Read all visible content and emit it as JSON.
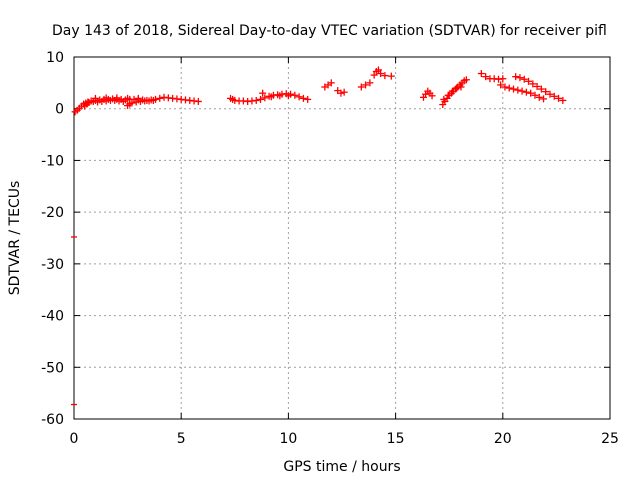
{
  "chart_data": {
    "type": "scatter",
    "title": "Day 143 of 2018, Sidereal Day-to-day VTEC variation (SDTVAR) for receiver pifl",
    "xlabel": "GPS time / hours",
    "ylabel": "SDTVAR / TECUs",
    "xlim": [
      0,
      25
    ],
    "ylim": [
      -60,
      10
    ],
    "xticks": [
      0,
      5,
      10,
      15,
      20,
      25
    ],
    "yticks": [
      10,
      0,
      -10,
      -20,
      -30,
      -40,
      -50,
      -60
    ],
    "grid": true,
    "marker_color": "#ff0000",
    "series": [
      {
        "points": [
          [
            0.05,
            -0.6
          ],
          [
            0.15,
            -0.3
          ],
          [
            0.25,
            0.1
          ],
          [
            0.35,
            0.5
          ],
          [
            0.45,
            0.9
          ],
          [
            0.55,
            1.1
          ],
          [
            0.65,
            1.3
          ],
          [
            0.8,
            1.5
          ],
          [
            1.0,
            1.6
          ],
          [
            1.2,
            1.7
          ],
          [
            1.4,
            1.8
          ],
          [
            1.6,
            1.8
          ],
          [
            1.8,
            1.9
          ],
          [
            2.0,
            1.8
          ],
          [
            2.2,
            1.8
          ],
          [
            2.4,
            1.7
          ],
          [
            2.6,
            1.8
          ],
          [
            2.8,
            1.8
          ],
          [
            3.0,
            1.7
          ],
          [
            3.2,
            1.7
          ],
          [
            3.4,
            1.6
          ],
          [
            3.6,
            1.7
          ],
          [
            3.8,
            1.8
          ],
          [
            4.0,
            2.0
          ],
          [
            4.2,
            2.2
          ],
          [
            4.4,
            2.1
          ],
          [
            4.6,
            2.0
          ],
          [
            4.8,
            1.9
          ],
          [
            5.0,
            1.8
          ],
          [
            5.2,
            1.7
          ],
          [
            5.4,
            1.6
          ],
          [
            5.6,
            1.5
          ],
          [
            5.8,
            1.4
          ],
          [
            0.5,
            0.5
          ],
          [
            0.6,
            0.9
          ],
          [
            0.7,
            1.2
          ],
          [
            0.9,
            1.4
          ],
          [
            1.1,
            1.3
          ],
          [
            1.3,
            1.4
          ],
          [
            1.5,
            1.5
          ],
          [
            1.7,
            1.6
          ],
          [
            1.9,
            1.6
          ],
          [
            2.1,
            1.5
          ],
          [
            2.3,
            1.4
          ],
          [
            2.5,
            0.6
          ],
          [
            2.6,
            0.9
          ],
          [
            2.7,
            1.1
          ],
          [
            2.9,
            1.3
          ],
          [
            3.1,
            1.4
          ],
          [
            3.3,
            1.5
          ],
          [
            3.5,
            1.5
          ],
          [
            3.7,
            1.6
          ],
          [
            1.0,
            2.0
          ],
          [
            1.5,
            2.1
          ],
          [
            2.0,
            2.1
          ],
          [
            2.5,
            2.0
          ],
          [
            3.0,
            2.0
          ],
          [
            7.3,
            2.0
          ],
          [
            7.5,
            1.6
          ],
          [
            7.7,
            1.5
          ],
          [
            7.9,
            1.5
          ],
          [
            8.1,
            1.4
          ],
          [
            8.3,
            1.5
          ],
          [
            8.5,
            1.6
          ],
          [
            8.7,
            1.8
          ],
          [
            8.9,
            2.1
          ],
          [
            9.1,
            2.4
          ],
          [
            9.3,
            2.6
          ],
          [
            9.5,
            2.7
          ],
          [
            9.7,
            2.8
          ],
          [
            9.9,
            2.9
          ],
          [
            10.1,
            2.8
          ],
          [
            10.3,
            2.6
          ],
          [
            10.5,
            2.3
          ],
          [
            10.7,
            2.0
          ],
          [
            10.9,
            1.8
          ],
          [
            8.8,
            3.0
          ],
          [
            7.4,
            1.8
          ],
          [
            9.2,
            2.3
          ],
          [
            9.6,
            2.5
          ],
          [
            10.0,
            2.5
          ],
          [
            11.7,
            4.2
          ],
          [
            11.85,
            4.6
          ],
          [
            12.0,
            5.0
          ],
          [
            12.3,
            3.5
          ],
          [
            12.45,
            3.0
          ],
          [
            12.6,
            3.2
          ],
          [
            13.4,
            4.2
          ],
          [
            13.6,
            4.6
          ],
          [
            13.8,
            5.0
          ],
          [
            14.0,
            6.5
          ],
          [
            14.1,
            7.2
          ],
          [
            14.2,
            7.5
          ],
          [
            14.3,
            6.8
          ],
          [
            14.5,
            6.4
          ],
          [
            14.8,
            6.3
          ],
          [
            16.3,
            2.2
          ],
          [
            16.4,
            2.8
          ],
          [
            16.5,
            3.4
          ],
          [
            16.6,
            3.0
          ],
          [
            16.7,
            2.5
          ],
          [
            17.2,
            0.8
          ],
          [
            17.3,
            1.4
          ],
          [
            17.4,
            2.0
          ],
          [
            17.5,
            2.6
          ],
          [
            17.6,
            3.0
          ],
          [
            17.7,
            3.4
          ],
          [
            17.8,
            3.8
          ],
          [
            17.9,
            4.2
          ],
          [
            18.0,
            4.6
          ],
          [
            18.1,
            5.0
          ],
          [
            18.2,
            5.4
          ],
          [
            18.3,
            5.6
          ],
          [
            17.25,
            1.8
          ],
          [
            17.45,
            2.6
          ],
          [
            17.65,
            3.4
          ],
          [
            17.85,
            4.0
          ],
          [
            18.05,
            4.2
          ],
          [
            19.0,
            6.8
          ],
          [
            19.2,
            6.2
          ],
          [
            19.4,
            5.8
          ],
          [
            19.6,
            5.8
          ],
          [
            19.8,
            5.7
          ],
          [
            20.0,
            5.8
          ],
          [
            19.9,
            4.6
          ],
          [
            20.1,
            4.2
          ],
          [
            20.3,
            4.0
          ],
          [
            20.5,
            3.8
          ],
          [
            20.7,
            3.6
          ],
          [
            20.9,
            3.4
          ],
          [
            21.1,
            3.2
          ],
          [
            21.3,
            3.0
          ],
          [
            20.6,
            6.2
          ],
          [
            20.8,
            6.0
          ],
          [
            21.0,
            5.7
          ],
          [
            21.2,
            5.3
          ],
          [
            21.4,
            4.8
          ],
          [
            21.6,
            4.3
          ],
          [
            21.8,
            3.8
          ],
          [
            22.0,
            3.3
          ],
          [
            22.2,
            2.8
          ],
          [
            22.4,
            2.4
          ],
          [
            22.6,
            2.0
          ],
          [
            22.8,
            1.6
          ],
          [
            21.5,
            2.6
          ],
          [
            21.7,
            2.2
          ],
          [
            21.9,
            1.9
          ]
        ]
      }
    ],
    "outliers": [
      [
        0.0,
        -24.8
      ],
      [
        0.0,
        -57.2
      ]
    ]
  }
}
